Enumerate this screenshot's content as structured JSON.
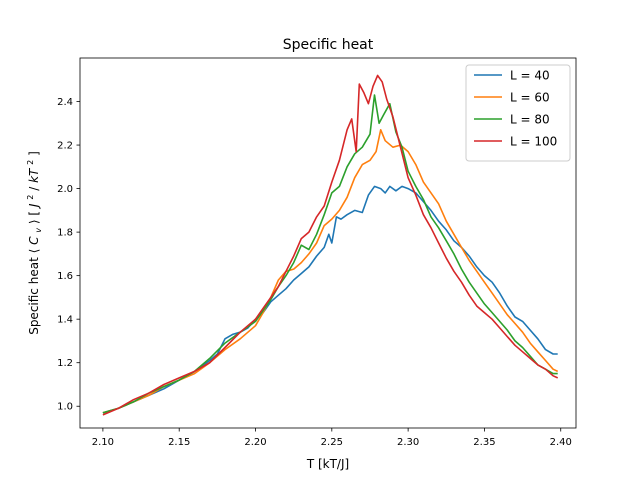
{
  "chart_data": {
    "type": "line",
    "title": "Specific heat",
    "xlabel": "T [kT/J]",
    "ylabel": {
      "prefix": "Specific heat ",
      "sym_open": "⟨",
      "sym": "C",
      "sym_sub": "v",
      "sym_close": "⟩",
      "unit_a": " [",
      "unit_b": "J",
      "unit_b_sup": "2",
      "unit_c": "/",
      "unit_d": "kT",
      "unit_d_sup": "2",
      "unit_e": "]"
    },
    "xlim": [
      2.085,
      2.41
    ],
    "ylim": [
      0.9,
      2.6
    ],
    "xticks": [
      2.1,
      2.15,
      2.2,
      2.25,
      2.3,
      2.35,
      2.4
    ],
    "xtick_labels": [
      "2.10",
      "2.15",
      "2.20",
      "2.25",
      "2.30",
      "2.35",
      "2.40"
    ],
    "yticks": [
      1.0,
      1.2,
      1.4,
      1.6,
      1.8,
      2.0,
      2.2,
      2.4
    ],
    "ytick_labels": [
      "1.0",
      "1.2",
      "1.4",
      "1.6",
      "1.8",
      "2.0",
      "2.2",
      "2.4"
    ],
    "grid": false,
    "legend_position": "top-right",
    "series": [
      {
        "name": "L = 40",
        "color": "#1f77b4",
        "points": [
          [
            2.1,
            0.97
          ],
          [
            2.11,
            0.99
          ],
          [
            2.12,
            1.02
          ],
          [
            2.13,
            1.05
          ],
          [
            2.14,
            1.08
          ],
          [
            2.15,
            1.12
          ],
          [
            2.16,
            1.16
          ],
          [
            2.17,
            1.21
          ],
          [
            2.175,
            1.24
          ],
          [
            2.18,
            1.31
          ],
          [
            2.185,
            1.33
          ],
          [
            2.19,
            1.34
          ],
          [
            2.195,
            1.36
          ],
          [
            2.2,
            1.4
          ],
          [
            2.205,
            1.43
          ],
          [
            2.21,
            1.48
          ],
          [
            2.215,
            1.51
          ],
          [
            2.22,
            1.54
          ],
          [
            2.225,
            1.58
          ],
          [
            2.23,
            1.61
          ],
          [
            2.235,
            1.64
          ],
          [
            2.24,
            1.69
          ],
          [
            2.245,
            1.73
          ],
          [
            2.248,
            1.79
          ],
          [
            2.25,
            1.75
          ],
          [
            2.253,
            1.87
          ],
          [
            2.256,
            1.86
          ],
          [
            2.26,
            1.88
          ],
          [
            2.265,
            1.9
          ],
          [
            2.27,
            1.89
          ],
          [
            2.274,
            1.97
          ],
          [
            2.278,
            2.01
          ],
          [
            2.282,
            2.0
          ],
          [
            2.285,
            1.98
          ],
          [
            2.288,
            2.01
          ],
          [
            2.292,
            1.99
          ],
          [
            2.296,
            2.01
          ],
          [
            2.3,
            2.0
          ],
          [
            2.305,
            1.98
          ],
          [
            2.31,
            1.94
          ],
          [
            2.315,
            1.9
          ],
          [
            2.32,
            1.85
          ],
          [
            2.325,
            1.81
          ],
          [
            2.33,
            1.76
          ],
          [
            2.335,
            1.73
          ],
          [
            2.34,
            1.69
          ],
          [
            2.345,
            1.64
          ],
          [
            2.35,
            1.6
          ],
          [
            2.355,
            1.57
          ],
          [
            2.36,
            1.52
          ],
          [
            2.365,
            1.46
          ],
          [
            2.37,
            1.41
          ],
          [
            2.375,
            1.39
          ],
          [
            2.38,
            1.35
          ],
          [
            2.385,
            1.31
          ],
          [
            2.39,
            1.26
          ],
          [
            2.395,
            1.24
          ],
          [
            2.398,
            1.24
          ]
        ]
      },
      {
        "name": "L = 60",
        "color": "#ff7f0e",
        "points": [
          [
            2.1,
            0.97
          ],
          [
            2.11,
            0.99
          ],
          [
            2.12,
            1.02
          ],
          [
            2.13,
            1.05
          ],
          [
            2.14,
            1.09
          ],
          [
            2.15,
            1.12
          ],
          [
            2.16,
            1.15
          ],
          [
            2.17,
            1.2
          ],
          [
            2.18,
            1.26
          ],
          [
            2.19,
            1.31
          ],
          [
            2.2,
            1.37
          ],
          [
            2.205,
            1.43
          ],
          [
            2.21,
            1.5
          ],
          [
            2.215,
            1.58
          ],
          [
            2.22,
            1.62
          ],
          [
            2.225,
            1.63
          ],
          [
            2.23,
            1.66
          ],
          [
            2.235,
            1.7
          ],
          [
            2.24,
            1.75
          ],
          [
            2.245,
            1.83
          ],
          [
            2.25,
            1.86
          ],
          [
            2.255,
            1.9
          ],
          [
            2.26,
            1.96
          ],
          [
            2.265,
            2.05
          ],
          [
            2.27,
            2.11
          ],
          [
            2.275,
            2.13
          ],
          [
            2.279,
            2.17
          ],
          [
            2.282,
            2.27
          ],
          [
            2.285,
            2.22
          ],
          [
            2.29,
            2.19
          ],
          [
            2.295,
            2.2
          ],
          [
            2.3,
            2.17
          ],
          [
            2.305,
            2.11
          ],
          [
            2.31,
            2.03
          ],
          [
            2.315,
            1.98
          ],
          [
            2.32,
            1.93
          ],
          [
            2.325,
            1.85
          ],
          [
            2.33,
            1.79
          ],
          [
            2.335,
            1.73
          ],
          [
            2.34,
            1.67
          ],
          [
            2.345,
            1.62
          ],
          [
            2.35,
            1.57
          ],
          [
            2.355,
            1.52
          ],
          [
            2.36,
            1.47
          ],
          [
            2.365,
            1.42
          ],
          [
            2.37,
            1.38
          ],
          [
            2.375,
            1.34
          ],
          [
            2.38,
            1.29
          ],
          [
            2.385,
            1.25
          ],
          [
            2.39,
            1.21
          ],
          [
            2.395,
            1.17
          ],
          [
            2.398,
            1.16
          ]
        ]
      },
      {
        "name": "L = 80",
        "color": "#2ca02c",
        "points": [
          [
            2.1,
            0.97
          ],
          [
            2.11,
            0.99
          ],
          [
            2.12,
            1.02
          ],
          [
            2.13,
            1.06
          ],
          [
            2.14,
            1.09
          ],
          [
            2.15,
            1.12
          ],
          [
            2.16,
            1.16
          ],
          [
            2.17,
            1.22
          ],
          [
            2.18,
            1.29
          ],
          [
            2.19,
            1.34
          ],
          [
            2.2,
            1.39
          ],
          [
            2.205,
            1.44
          ],
          [
            2.21,
            1.49
          ],
          [
            2.215,
            1.55
          ],
          [
            2.22,
            1.6
          ],
          [
            2.225,
            1.66
          ],
          [
            2.23,
            1.74
          ],
          [
            2.235,
            1.72
          ],
          [
            2.24,
            1.79
          ],
          [
            2.245,
            1.88
          ],
          [
            2.25,
            1.98
          ],
          [
            2.255,
            2.01
          ],
          [
            2.26,
            2.1
          ],
          [
            2.265,
            2.16
          ],
          [
            2.27,
            2.19
          ],
          [
            2.275,
            2.25
          ],
          [
            2.278,
            2.43
          ],
          [
            2.281,
            2.3
          ],
          [
            2.284,
            2.34
          ],
          [
            2.288,
            2.39
          ],
          [
            2.292,
            2.26
          ],
          [
            2.296,
            2.19
          ],
          [
            2.3,
            2.08
          ],
          [
            2.305,
            2.01
          ],
          [
            2.31,
            1.95
          ],
          [
            2.315,
            1.87
          ],
          [
            2.32,
            1.82
          ],
          [
            2.325,
            1.76
          ],
          [
            2.33,
            1.7
          ],
          [
            2.335,
            1.63
          ],
          [
            2.34,
            1.57
          ],
          [
            2.345,
            1.52
          ],
          [
            2.35,
            1.47
          ],
          [
            2.355,
            1.43
          ],
          [
            2.36,
            1.39
          ],
          [
            2.365,
            1.35
          ],
          [
            2.37,
            1.3
          ],
          [
            2.375,
            1.27
          ],
          [
            2.38,
            1.23
          ],
          [
            2.385,
            1.19
          ],
          [
            2.39,
            1.17
          ],
          [
            2.395,
            1.15
          ],
          [
            2.398,
            1.15
          ]
        ]
      },
      {
        "name": "L = 100",
        "color": "#d62728",
        "points": [
          [
            2.1,
            0.96
          ],
          [
            2.11,
            0.99
          ],
          [
            2.12,
            1.03
          ],
          [
            2.13,
            1.06
          ],
          [
            2.14,
            1.1
          ],
          [
            2.15,
            1.13
          ],
          [
            2.16,
            1.16
          ],
          [
            2.17,
            1.2
          ],
          [
            2.18,
            1.27
          ],
          [
            2.19,
            1.34
          ],
          [
            2.2,
            1.4
          ],
          [
            2.205,
            1.45
          ],
          [
            2.21,
            1.5
          ],
          [
            2.215,
            1.55
          ],
          [
            2.22,
            1.62
          ],
          [
            2.225,
            1.69
          ],
          [
            2.23,
            1.77
          ],
          [
            2.235,
            1.8
          ],
          [
            2.24,
            1.87
          ],
          [
            2.245,
            1.92
          ],
          [
            2.25,
            2.03
          ],
          [
            2.255,
            2.13
          ],
          [
            2.26,
            2.27
          ],
          [
            2.263,
            2.32
          ],
          [
            2.266,
            2.17
          ],
          [
            2.268,
            2.48
          ],
          [
            2.271,
            2.44
          ],
          [
            2.274,
            2.39
          ],
          [
            2.277,
            2.47
          ],
          [
            2.28,
            2.52
          ],
          [
            2.283,
            2.49
          ],
          [
            2.286,
            2.41
          ],
          [
            2.29,
            2.33
          ],
          [
            2.295,
            2.19
          ],
          [
            2.3,
            2.05
          ],
          [
            2.305,
            1.97
          ],
          [
            2.31,
            1.88
          ],
          [
            2.315,
            1.82
          ],
          [
            2.32,
            1.75
          ],
          [
            2.325,
            1.68
          ],
          [
            2.33,
            1.62
          ],
          [
            2.335,
            1.57
          ],
          [
            2.34,
            1.51
          ],
          [
            2.345,
            1.46
          ],
          [
            2.35,
            1.43
          ],
          [
            2.355,
            1.4
          ],
          [
            2.36,
            1.36
          ],
          [
            2.365,
            1.32
          ],
          [
            2.37,
            1.28
          ],
          [
            2.375,
            1.25
          ],
          [
            2.38,
            1.22
          ],
          [
            2.385,
            1.19
          ],
          [
            2.39,
            1.17
          ],
          [
            2.395,
            1.14
          ],
          [
            2.398,
            1.13
          ]
        ]
      }
    ]
  }
}
